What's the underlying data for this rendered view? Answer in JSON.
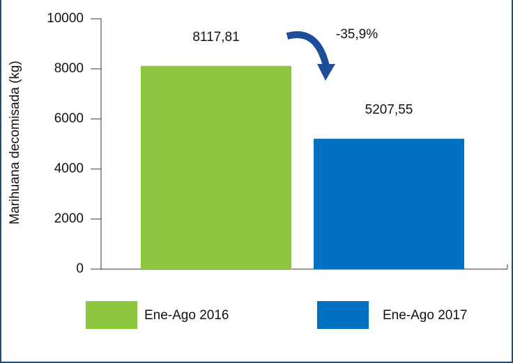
{
  "chart_data": {
    "type": "bar",
    "ylabel": "Marihuana decomisada (kg)",
    "categories": [
      null
    ],
    "series": [
      {
        "name": "Ene-Ago 2016",
        "color": "#8dc63f",
        "values": [
          8117.81
        ],
        "value_labels": [
          "8117,81"
        ]
      },
      {
        "name": "Ene-Ago 2017",
        "color": "#0070c0",
        "values": [
          5207.55
        ],
        "value_labels": [
          "5207,55"
        ]
      }
    ],
    "annotation": "-35,9%",
    "ylim": [
      0,
      10000
    ],
    "yticks": [
      0,
      2000,
      4000,
      6000,
      8000,
      10000
    ],
    "grid": false
  }
}
